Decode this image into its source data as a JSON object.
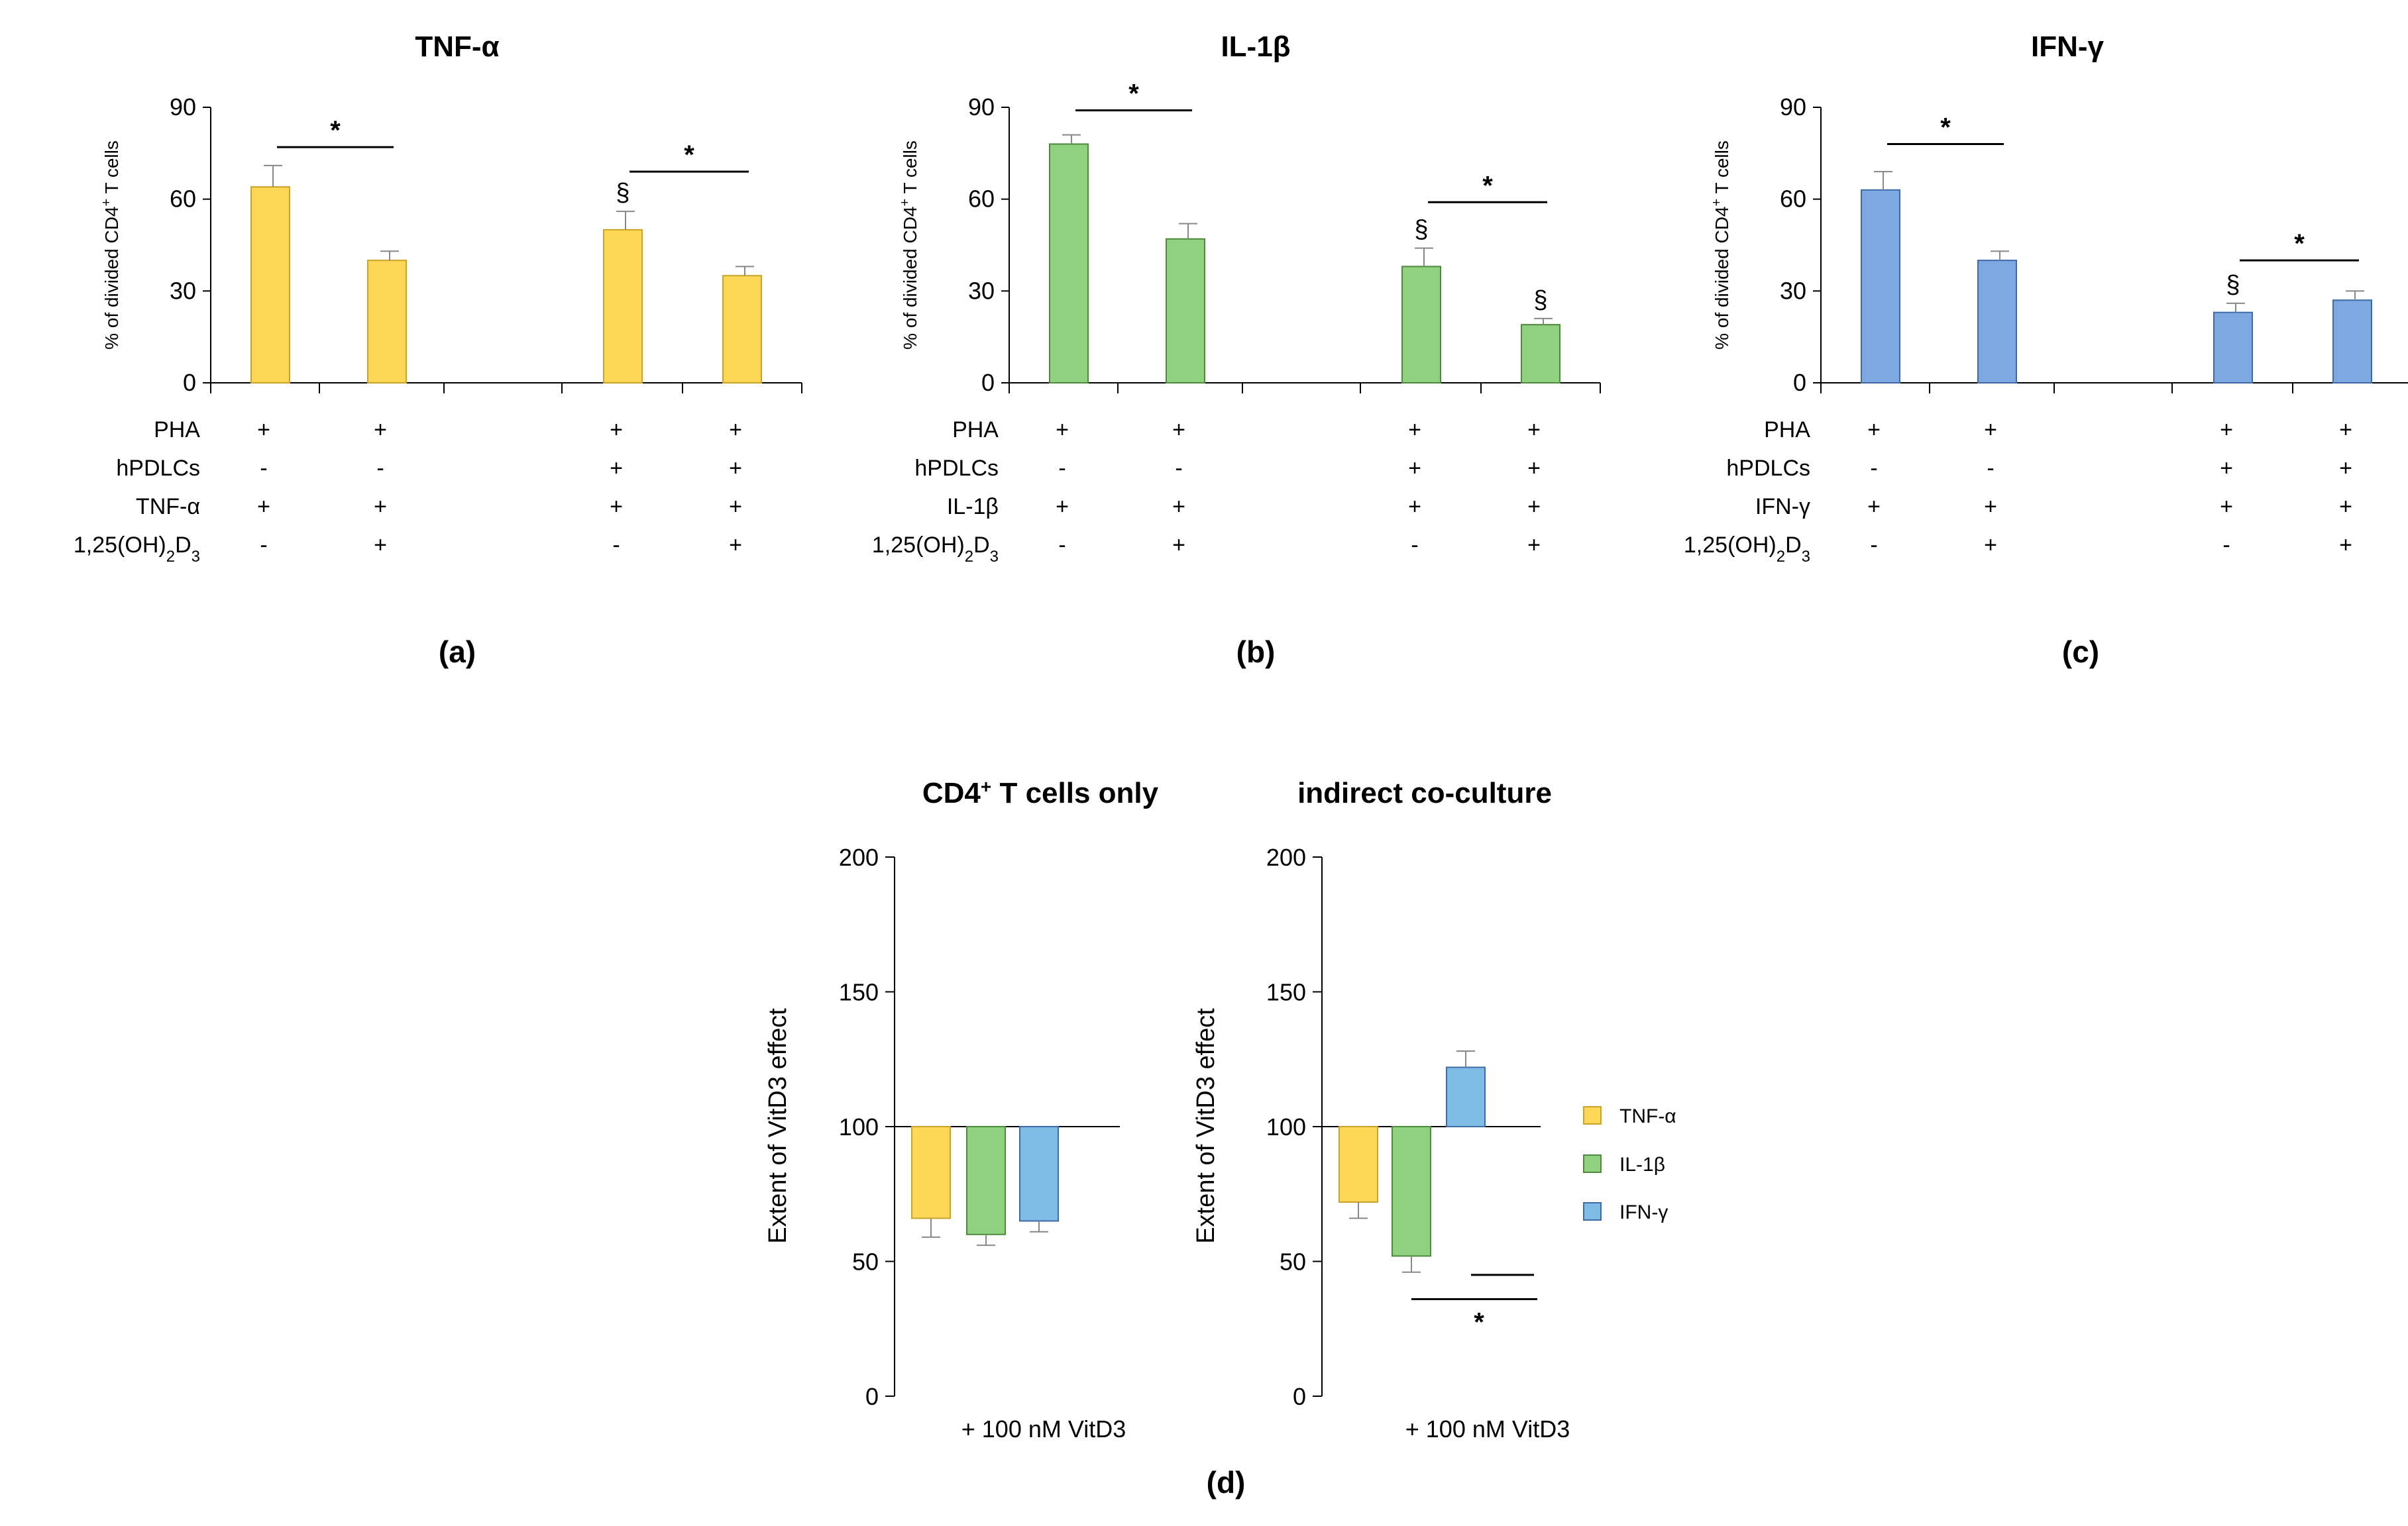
{
  "figure": {
    "panel_labels": [
      "(a)",
      "(b)",
      "(c)",
      "(d)"
    ],
    "row_labels": {
      "pha": "PHA",
      "hpdlcs": "hPDLCs",
      "vitd_main": "1,25(OH)",
      "vitd_sub1": "2",
      "vitd_mid": "D",
      "vitd_sub2": "3"
    },
    "ylabel_top_main": "% of divided CD4",
    "ylabel_top_sup": "+",
    "ylabel_top_end": " T cells",
    "ylabel_bottom": "Extent of VitD3 effect",
    "xcaption_bottom": "+ 100 nM VitD3",
    "sig_star": "*",
    "section_symbol": "§"
  },
  "colors": {
    "tnf": "#FFD757",
    "il1b": "#8FD17E",
    "ifng": "#7EA9E0",
    "ifng_light": "#7EBCE6",
    "stroke_tnf": "#C9A227",
    "stroke_il1b": "#4E8A3E",
    "stroke_ifng": "#3E6AA8"
  },
  "chart_data": [
    {
      "type": "bar",
      "panel": "(a)",
      "title": "TNF-α",
      "ylabel": "% of divided CD4+ T cells",
      "ylim": [
        0,
        90
      ],
      "yticks": [
        "0",
        "30",
        "60",
        "90"
      ],
      "cytokine_label": "TNF-α",
      "groups": [
        {
          "value": 64,
          "error": 7,
          "pha": "+",
          "hpdlcs": "-",
          "cytokine": "+",
          "vitd": "-",
          "mark": ""
        },
        {
          "value": 40,
          "error": 3,
          "pha": "+",
          "hpdlcs": "-",
          "cytokine": "+",
          "vitd": "+",
          "mark": ""
        },
        {
          "value": 50,
          "error": 6,
          "pha": "+",
          "hpdlcs": "+",
          "cytokine": "+",
          "vitd": "-",
          "mark": "§"
        },
        {
          "value": 35,
          "error": 3,
          "pha": "+",
          "hpdlcs": "+",
          "cytokine": "+",
          "vitd": "+",
          "mark": ""
        }
      ],
      "significance": [
        {
          "from": 0,
          "to": 1,
          "label": "*",
          "y": 77
        },
        {
          "from": 2,
          "to": 3,
          "label": "*",
          "y": 69
        }
      ]
    },
    {
      "type": "bar",
      "panel": "(b)",
      "title": "IL-1β",
      "ylabel": "% of divided CD4+ T cells",
      "ylim": [
        0,
        90
      ],
      "yticks": [
        "0",
        "30",
        "60",
        "90"
      ],
      "cytokine_label": "IL-1β",
      "groups": [
        {
          "value": 78,
          "error": 3,
          "pha": "+",
          "hpdlcs": "-",
          "cytokine": "+",
          "vitd": "-",
          "mark": ""
        },
        {
          "value": 47,
          "error": 5,
          "pha": "+",
          "hpdlcs": "-",
          "cytokine": "+",
          "vitd": "+",
          "mark": ""
        },
        {
          "value": 38,
          "error": 6,
          "pha": "+",
          "hpdlcs": "+",
          "cytokine": "+",
          "vitd": "-",
          "mark": "§"
        },
        {
          "value": 19,
          "error": 2,
          "pha": "+",
          "hpdlcs": "+",
          "cytokine": "+",
          "vitd": "+",
          "mark": "§"
        }
      ],
      "significance": [
        {
          "from": 0,
          "to": 1,
          "label": "*",
          "y": 89
        },
        {
          "from": 2,
          "to": 3,
          "label": "*",
          "y": 59
        }
      ]
    },
    {
      "type": "bar",
      "panel": "(c)",
      "title": "IFN-γ",
      "ylabel": "% of divided CD4+ T cells",
      "ylim": [
        0,
        90
      ],
      "yticks": [
        "0",
        "30",
        "60",
        "90"
      ],
      "cytokine_label": "IFN-γ",
      "groups": [
        {
          "value": 63,
          "error": 6,
          "pha": "+",
          "hpdlcs": "-",
          "cytokine": "+",
          "vitd": "-",
          "mark": ""
        },
        {
          "value": 40,
          "error": 3,
          "pha": "+",
          "hpdlcs": "-",
          "cytokine": "+",
          "vitd": "+",
          "mark": ""
        },
        {
          "value": 23,
          "error": 3,
          "pha": "+",
          "hpdlcs": "+",
          "cytokine": "+",
          "vitd": "-",
          "mark": "§"
        },
        {
          "value": 27,
          "error": 3,
          "pha": "+",
          "hpdlcs": "+",
          "cytokine": "+",
          "vitd": "+",
          "mark": ""
        }
      ],
      "significance": [
        {
          "from": 0,
          "to": 1,
          "label": "*",
          "y": 78
        },
        {
          "from": 2,
          "to": 3,
          "label": "*",
          "y": 40
        }
      ]
    },
    {
      "type": "bar",
      "panel": "(d)",
      "title": "CD4+ T cells only",
      "title_main": "CD4",
      "title_sup": "+",
      "title_end": " T cells only",
      "ylabel": "Extent of VitD3 effect",
      "ylim": [
        0,
        200
      ],
      "yticks": [
        "0",
        "50",
        "100",
        "150",
        "200"
      ],
      "baseline": 100,
      "xlabel": "+ 100 nM VitD3",
      "series": [
        {
          "name": "TNF-α",
          "value": 66,
          "error": 7
        },
        {
          "name": "IL-1β",
          "value": 60,
          "error": 4
        },
        {
          "name": "IFN-γ",
          "value": 65,
          "error": 4
        }
      ]
    },
    {
      "type": "bar",
      "panel": "(d)",
      "title": "indirect co-culture",
      "ylabel": "Extent of VitD3 effect",
      "ylim": [
        0,
        200
      ],
      "yticks": [
        "0",
        "50",
        "100",
        "150",
        "200"
      ],
      "baseline": 100,
      "xlabel": "+ 100 nM VitD3",
      "series": [
        {
          "name": "TNF-α",
          "value": 72,
          "error": 6
        },
        {
          "name": "IL-1β",
          "value": 52,
          "error": 6
        },
        {
          "name": "IFN-γ",
          "value": 122,
          "error": 6
        }
      ],
      "significance_label": "*",
      "legend": [
        "TNF-α",
        "IL-1β",
        "IFN-γ"
      ]
    }
  ]
}
